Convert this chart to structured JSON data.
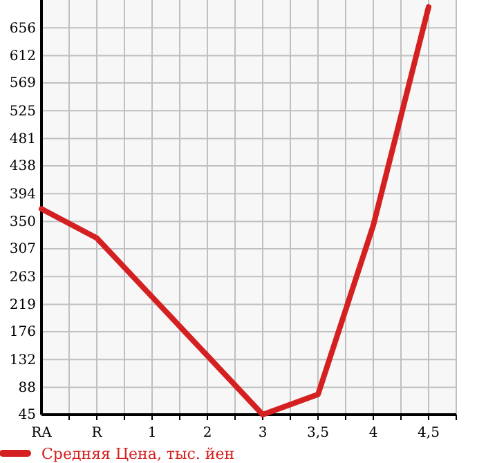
{
  "chart_data": {
    "type": "line",
    "categories": [
      "RA",
      "R",
      "1",
      "2",
      "3",
      "3,5",
      "4",
      "4,5"
    ],
    "series": [
      {
        "name": "Средняя Цена, тыс. йен",
        "color": "#d42020",
        "values": [
          370,
          324,
          231,
          138,
          45,
          77,
          344,
          689
        ]
      }
    ],
    "ylim": [
      45,
      700
    ],
    "yticks": [
      45,
      88,
      132,
      176,
      219,
      263,
      307,
      350,
      394,
      438,
      481,
      525,
      569,
      612,
      656
    ],
    "grid": true,
    "legend": "bottom",
    "marker": "none",
    "line_style": "solid"
  }
}
